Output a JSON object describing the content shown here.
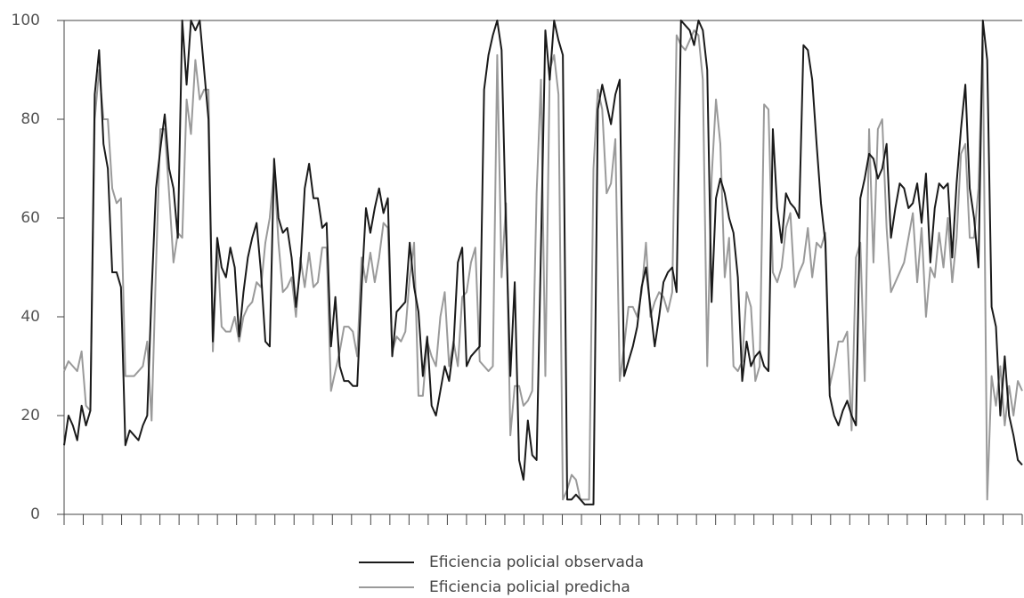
{
  "chart_data": {
    "type": "line",
    "ylim": [
      0,
      100
    ],
    "yticks": [
      0,
      20,
      40,
      60,
      80,
      100
    ],
    "grid": false,
    "legend": "bottom",
    "series": [
      {
        "name": "Eficiencia policial observada",
        "color": "#1a1a1a",
        "values": [
          14,
          20,
          18,
          15,
          22,
          18,
          21,
          85,
          94,
          75,
          70,
          49,
          49,
          46,
          14,
          17,
          16,
          15,
          18,
          20,
          45,
          66,
          74,
          81,
          70,
          66,
          56,
          100,
          87,
          100,
          98,
          100,
          90,
          80,
          35,
          56,
          50,
          48,
          54,
          50,
          36,
          45,
          52,
          56,
          59,
          49,
          35,
          34,
          72,
          60,
          57,
          58,
          52,
          42,
          50,
          66,
          71,
          64,
          64,
          58,
          59,
          34,
          44,
          30,
          27,
          27,
          26,
          26,
          46,
          62,
          57,
          62,
          66,
          61,
          64,
          32,
          41,
          42,
          43,
          55,
          46,
          41,
          28,
          36,
          22,
          20,
          25,
          30,
          27,
          34,
          51,
          54,
          30,
          32,
          33,
          34,
          86,
          93,
          97,
          100,
          94,
          58,
          28,
          47,
          11,
          7,
          19,
          12,
          11,
          54,
          98,
          88,
          100,
          96,
          93,
          3,
          3,
          4,
          3,
          2,
          2,
          2,
          82,
          87,
          83,
          79,
          85,
          88,
          28,
          31,
          34,
          38,
          46,
          50,
          42,
          34,
          40,
          47,
          49,
          50,
          45,
          100,
          99,
          98,
          95,
          100,
          98,
          90,
          43,
          64,
          68,
          65,
          60,
          57,
          48,
          27,
          35,
          30,
          32,
          33,
          30,
          29,
          78,
          62,
          55,
          65,
          63,
          62,
          60,
          95,
          94,
          88,
          75,
          63,
          55,
          24,
          20,
          18,
          21,
          23,
          20,
          18,
          64,
          68,
          73,
          72,
          68,
          70,
          75,
          56,
          62,
          67,
          66,
          62,
          63,
          67,
          59,
          69,
          51,
          62,
          67,
          66,
          67,
          52,
          67,
          78,
          87,
          66,
          60,
          50,
          100,
          92,
          42,
          38,
          20,
          32,
          20,
          16,
          11,
          10
        ]
      },
      {
        "name": "Eficiencia policial predicha",
        "color": "#9a9a9a",
        "values": [
          29,
          31,
          30,
          29,
          33,
          22,
          21,
          80,
          90,
          80,
          80,
          66,
          63,
          64,
          28,
          28,
          28,
          29,
          30,
          35,
          19,
          50,
          78,
          78,
          65,
          51,
          57,
          56,
          84,
          77,
          92,
          84,
          86,
          86,
          33,
          55,
          38,
          37,
          37,
          40,
          35,
          40,
          42,
          43,
          47,
          46,
          55,
          60,
          70,
          55,
          45,
          46,
          48,
          40,
          52,
          46,
          53,
          46,
          47,
          54,
          54,
          25,
          29,
          33,
          38,
          38,
          37,
          32,
          52,
          47,
          53,
          47,
          52,
          59,
          58,
          33,
          36,
          35,
          37,
          48,
          55,
          24,
          24,
          35,
          32,
          30,
          40,
          45,
          30,
          35,
          30,
          44,
          45,
          51,
          54,
          31,
          30,
          29,
          30,
          93,
          48,
          63,
          16,
          26,
          26,
          22,
          23,
          25,
          65,
          88,
          28,
          90,
          93,
          85,
          3,
          5,
          8,
          7,
          3,
          3,
          3,
          70,
          86,
          82,
          65,
          67,
          76,
          27,
          34,
          42,
          42,
          40,
          45,
          55,
          40,
          43,
          45,
          44,
          41,
          45,
          97,
          95,
          94,
          96,
          98,
          97,
          88,
          30,
          68,
          84,
          75,
          48,
          56,
          30,
          29,
          31,
          45,
          42,
          27,
          30,
          83,
          82,
          49,
          47,
          50,
          58,
          61,
          46,
          49,
          51,
          58,
          48,
          55,
          54,
          57,
          26,
          30,
          35,
          35,
          37,
          17,
          52,
          55,
          27,
          78,
          51,
          78,
          80,
          58,
          45,
          47,
          49,
          51,
          56,
          61,
          47,
          58,
          40,
          50,
          48,
          57,
          50,
          60,
          47,
          56,
          73,
          75,
          56,
          56,
          66,
          96,
          3,
          28,
          22,
          30,
          18,
          26,
          20,
          27,
          25
        ]
      }
    ]
  }
}
